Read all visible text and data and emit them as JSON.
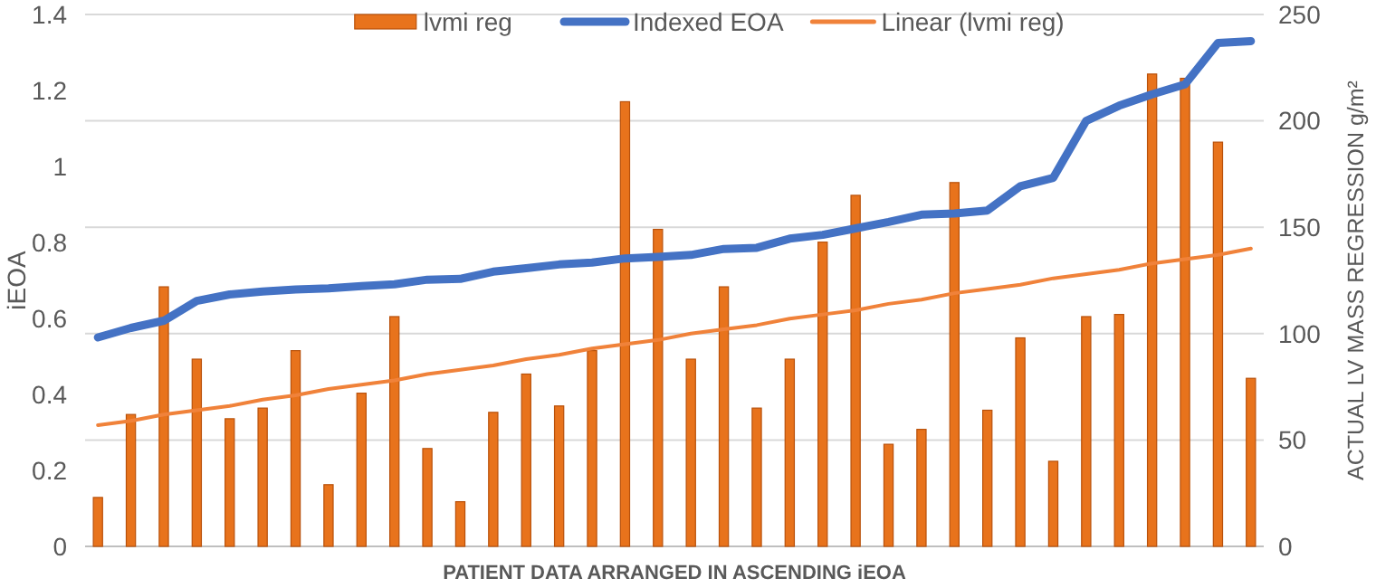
{
  "chart_data": {
    "type": "bar",
    "xlabel": "PATIENT DATA ARRANGED IN ASCENDING iEOA",
    "ylabel": "iEOA",
    "y2label": "ACTUAL LV MASS REGRESSION  g/m²",
    "categories": [
      null,
      null,
      null,
      null,
      null,
      null,
      null,
      null,
      null,
      null,
      null,
      null,
      null,
      null,
      null,
      null,
      null,
      null,
      null,
      null,
      null,
      null,
      null,
      null,
      null,
      null,
      null,
      null,
      null,
      null,
      null,
      null,
      null,
      null,
      null,
      null
    ],
    "series": [
      {
        "name": "lvmi reg",
        "axis": "y2",
        "color": "#e8731c",
        "values": [
          23,
          62,
          122,
          88,
          60,
          65,
          92,
          29,
          72,
          108,
          46,
          21,
          63,
          81,
          66,
          92,
          209,
          149,
          88,
          122,
          65,
          88,
          143,
          165,
          48,
          55,
          171,
          64,
          98,
          40,
          108,
          109,
          222,
          220,
          190,
          79
        ]
      },
      {
        "name": "Indexed EOA",
        "type": "line",
        "color": "#4472c4",
        "values": [
          0.55,
          0.575,
          0.594,
          0.646,
          0.663,
          0.671,
          0.676,
          0.679,
          0.685,
          0.69,
          0.702,
          0.704,
          0.723,
          0.732,
          0.742,
          0.747,
          0.758,
          0.762,
          0.767,
          0.783,
          0.786,
          0.81,
          0.82,
          0.837,
          0.854,
          0.873,
          0.876,
          0.884,
          0.948,
          0.97,
          1.12,
          1.16,
          1.19,
          1.216,
          1.325,
          1.33
        ]
      },
      {
        "name": "Linear (lvmi reg)",
        "type": "line",
        "axis": "y2",
        "color": "#f0823a",
        "values": [
          57,
          59,
          62,
          64,
          66,
          69,
          71,
          74,
          76,
          78,
          81,
          83,
          85,
          88,
          90,
          93,
          95,
          97,
          100,
          102,
          104,
          107,
          109,
          111,
          114,
          116,
          119,
          121,
          123,
          126,
          128,
          130,
          133,
          135,
          137,
          140
        ]
      }
    ],
    "ylim": [
      0,
      1.4
    ],
    "yticks": [
      0,
      {
        "value": 0.2,
        "label": "0.2"
      },
      {
        "value": 0.4,
        "label": "0.4"
      },
      {
        "value": 0.6,
        "label": "0.6"
      },
      {
        "value": 0.8,
        "label": "0.8"
      },
      1,
      {
        "value": 1.2,
        "label": "1.2"
      },
      {
        "value": 1.4,
        "label": "1.4"
      }
    ],
    "y2lim": [
      0,
      250
    ],
    "y2ticks": [
      0,
      50,
      100,
      150,
      200,
      250
    ],
    "grid": true,
    "legend": "top"
  }
}
